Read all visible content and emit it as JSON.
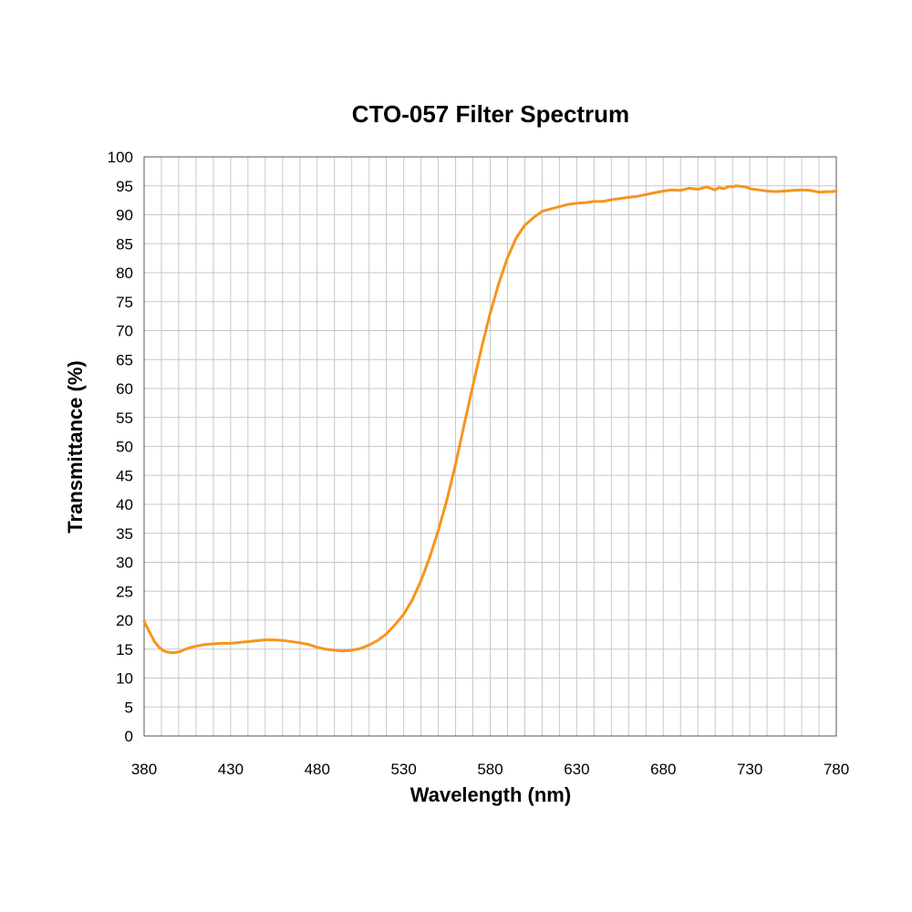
{
  "chart_data": {
    "type": "line",
    "title": "CTO-057 Filter Spectrum",
    "xlabel": "Wavelength (nm)",
    "ylabel": "Transmittance (%)",
    "xlim": [
      380,
      780
    ],
    "ylim": [
      0,
      100
    ],
    "x_ticks": [
      380,
      430,
      480,
      530,
      580,
      630,
      680,
      730,
      780
    ],
    "y_ticks": [
      0,
      5,
      10,
      15,
      20,
      25,
      30,
      35,
      40,
      45,
      50,
      55,
      60,
      65,
      70,
      75,
      80,
      85,
      90,
      95,
      100
    ],
    "x_minor_step": 10,
    "grid": true,
    "legend": "none",
    "line_color": "#f7941d",
    "series": [
      {
        "x": [
          380,
          383,
          386,
          389,
          392,
          395,
          398,
          401,
          404,
          407,
          410,
          415,
          420,
          425,
          430,
          440,
          450,
          455,
          460,
          470,
          475,
          480,
          485,
          490,
          495,
          500,
          505,
          510,
          515,
          520,
          525,
          530,
          535,
          540,
          545,
          550,
          555,
          560,
          565,
          570,
          575,
          580,
          585,
          590,
          595,
          600,
          605,
          610,
          615,
          620,
          625,
          630,
          635,
          640,
          645,
          650,
          655,
          660,
          665,
          670,
          675,
          680,
          685,
          690,
          695,
          700,
          705,
          710,
          712,
          715,
          718,
          720,
          722,
          725,
          728,
          730,
          735,
          740,
          745,
          750,
          755,
          760,
          765,
          770,
          775,
          778,
          780
        ],
        "y": [
          19.8,
          18.0,
          16.3,
          15.2,
          14.6,
          14.4,
          14.4,
          14.6,
          15.0,
          15.3,
          15.5,
          15.8,
          15.9,
          16.0,
          16.0,
          16.3,
          16.6,
          16.6,
          16.5,
          16.1,
          15.8,
          15.3,
          15.0,
          14.8,
          14.7,
          14.8,
          15.1,
          15.7,
          16.5,
          17.6,
          19.2,
          21.0,
          23.5,
          26.8,
          30.8,
          35.5,
          40.8,
          47.0,
          53.8,
          60.5,
          67.0,
          73.0,
          78.2,
          82.6,
          86.0,
          88.2,
          89.5,
          90.6,
          91.0,
          91.4,
          91.8,
          92.0,
          92.1,
          92.3,
          92.3,
          92.6,
          92.8,
          93.0,
          93.2,
          93.5,
          93.8,
          94.1,
          94.3,
          94.2,
          94.6,
          94.4,
          94.8,
          94.3,
          94.7,
          94.5,
          94.9,
          94.8,
          95.0,
          94.9,
          94.8,
          94.5,
          94.3,
          94.1,
          94.0,
          94.1,
          94.2,
          94.3,
          94.2,
          93.9,
          94.0,
          94.0,
          94.1
        ]
      }
    ]
  }
}
